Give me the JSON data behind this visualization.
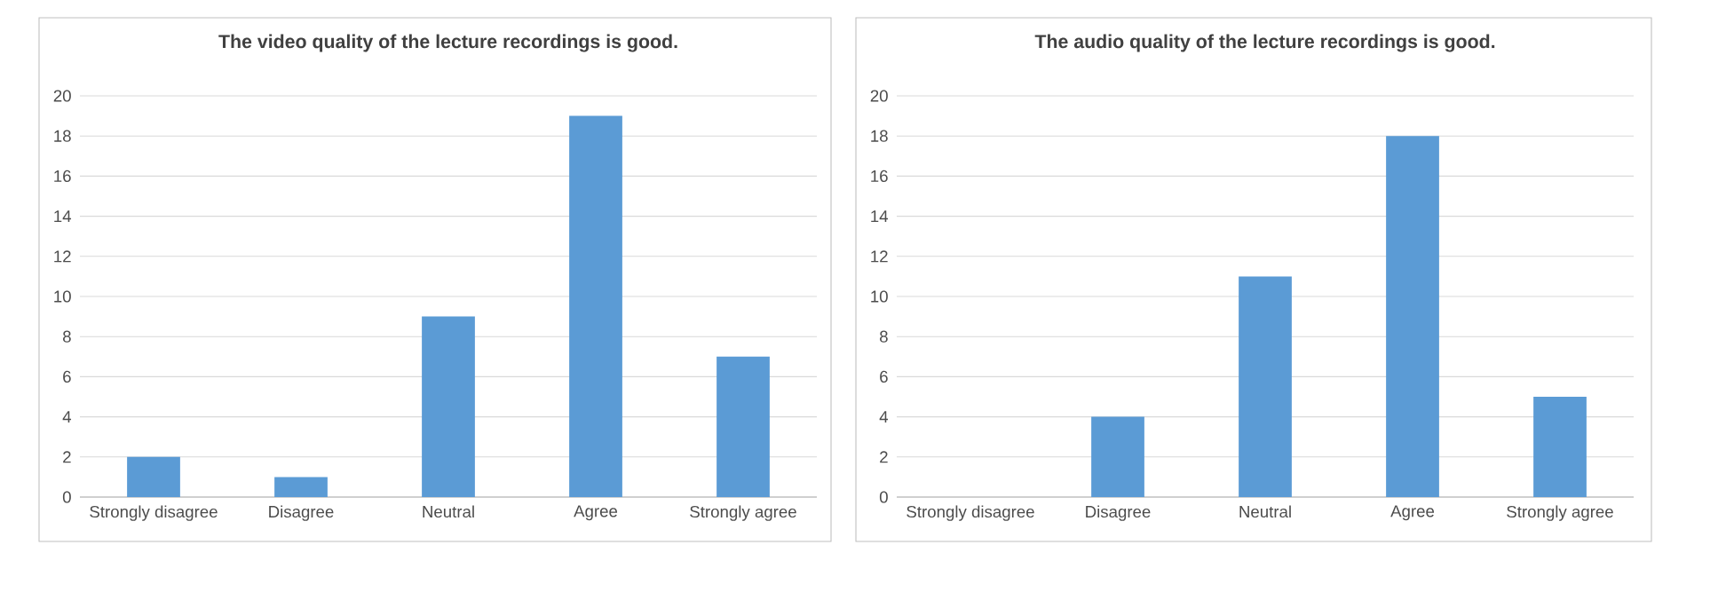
{
  "chart_data": [
    {
      "type": "bar",
      "title": "The video quality of the lecture recordings is good.",
      "categories": [
        "Strongly disagree",
        "Disagree",
        "Neutral",
        "Agree",
        "Strongly agree"
      ],
      "values": [
        2,
        1,
        9,
        19,
        7
      ],
      "color": "#5b9bd5",
      "ylim": [
        0,
        20
      ],
      "yticks": [
        0,
        2,
        4,
        6,
        8,
        10,
        12,
        14,
        16,
        18,
        20
      ],
      "grid": "y"
    },
    {
      "type": "bar",
      "title": "The audio quality of the lecture recordings is good.",
      "categories": [
        "Strongly disagree",
        "Disagree",
        "Neutral",
        "Agree",
        "Strongly agree"
      ],
      "values": [
        0,
        4,
        11,
        18,
        5
      ],
      "color": "#5b9bd5",
      "ylim": [
        0,
        20
      ],
      "yticks": [
        0,
        2,
        4,
        6,
        8,
        10,
        12,
        14,
        16,
        18,
        20
      ],
      "grid": "y"
    }
  ]
}
